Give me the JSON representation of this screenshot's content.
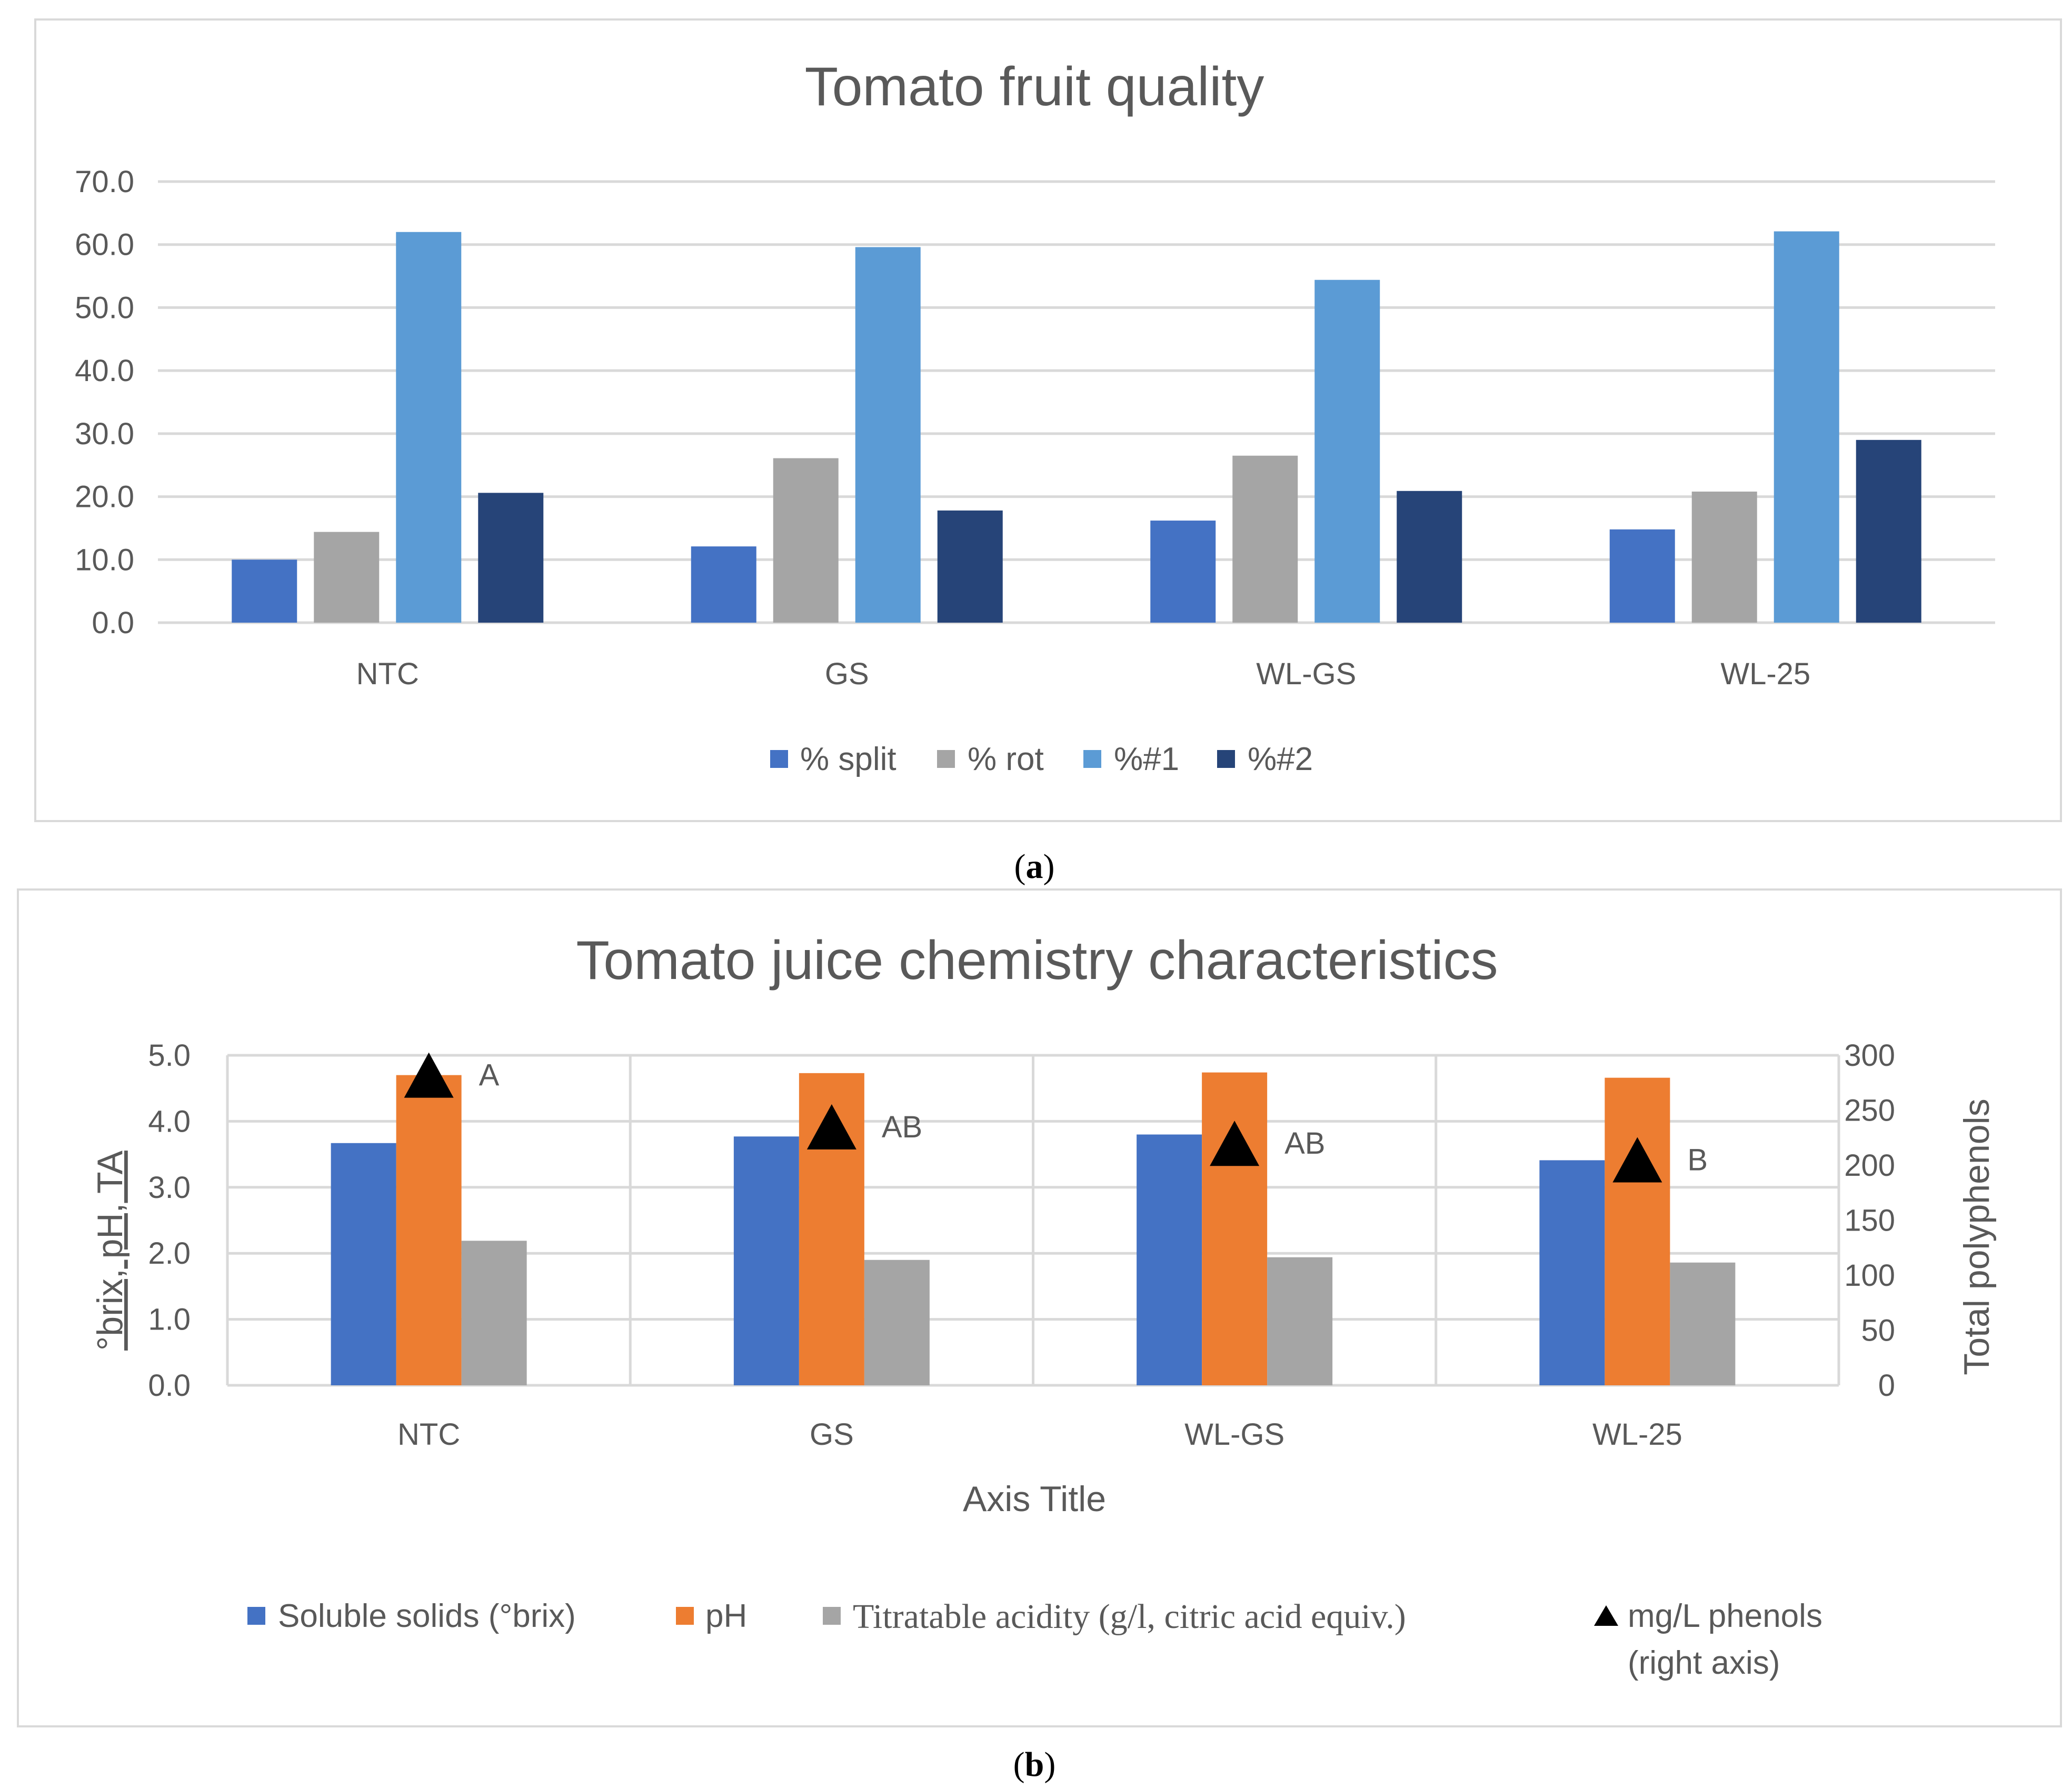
{
  "chart_data": [
    {
      "type": "bar",
      "panel": "a",
      "title": "Tomato  fruit quality",
      "categories": [
        "NTC",
        "GS",
        "WL-GS",
        "WL-25"
      ],
      "ylim": [
        0,
        70
      ],
      "yticks": [
        "0.0",
        "10.0",
        "20.0",
        "30.0",
        "40.0",
        "50.0",
        "60.0",
        "70.0"
      ],
      "grid": true,
      "legend_position": "bottom",
      "series": [
        {
          "name": "% split",
          "color": "#4472C4",
          "values": [
            10.0,
            12.1,
            16.2,
            14.8
          ]
        },
        {
          "name": "% rot",
          "color": "#A5A5A5",
          "values": [
            14.4,
            26.1,
            26.5,
            20.8
          ]
        },
        {
          "name": "%#1",
          "color": "#5B9BD5",
          "values": [
            62.0,
            59.6,
            54.4,
            62.1
          ]
        },
        {
          "name": "%#2",
          "color": "#264478",
          "values": [
            20.6,
            17.8,
            20.9,
            29.0
          ]
        }
      ],
      "caption": "a"
    },
    {
      "type": "bar",
      "panel": "b",
      "title": "Tomato juice chemistry characteristics",
      "categories": [
        "NTC",
        "GS",
        "WL-GS",
        "WL-25"
      ],
      "xlabel": "Axis Title",
      "ylabel": "°brix, pH, TA",
      "ylim": [
        0,
        5
      ],
      "yticks": [
        "0.0",
        "1.0",
        "2.0",
        "3.0",
        "4.0",
        "5.0"
      ],
      "y2label": "Total polyphenols",
      "y2lim": [
        0,
        300
      ],
      "y2ticks": [
        "0",
        "50",
        "100",
        "150",
        "200",
        "250",
        "300"
      ],
      "grid": true,
      "legend_position": "bottom",
      "series": [
        {
          "name": "Soluble solids (°brix)",
          "color": "#4472C4",
          "values": [
            3.67,
            3.77,
            3.8,
            3.41
          ]
        },
        {
          "name": "pH",
          "color": "#ED7D31",
          "values": [
            4.7,
            4.73,
            4.74,
            4.66
          ]
        },
        {
          "name": "Titratable acidity (g/l, citric acid equiv.)",
          "color": "#A5A5A5",
          "values": [
            2.19,
            1.9,
            1.94,
            1.86
          ]
        }
      ],
      "markers": {
        "name": "mg/L phenols",
        "name_line2": "(right axis)",
        "axis": "right",
        "color": "#000000",
        "values": [
          282,
          235,
          220,
          205
        ],
        "labels": [
          "A",
          "AB",
          "AB",
          "B"
        ]
      },
      "caption": "b"
    }
  ]
}
